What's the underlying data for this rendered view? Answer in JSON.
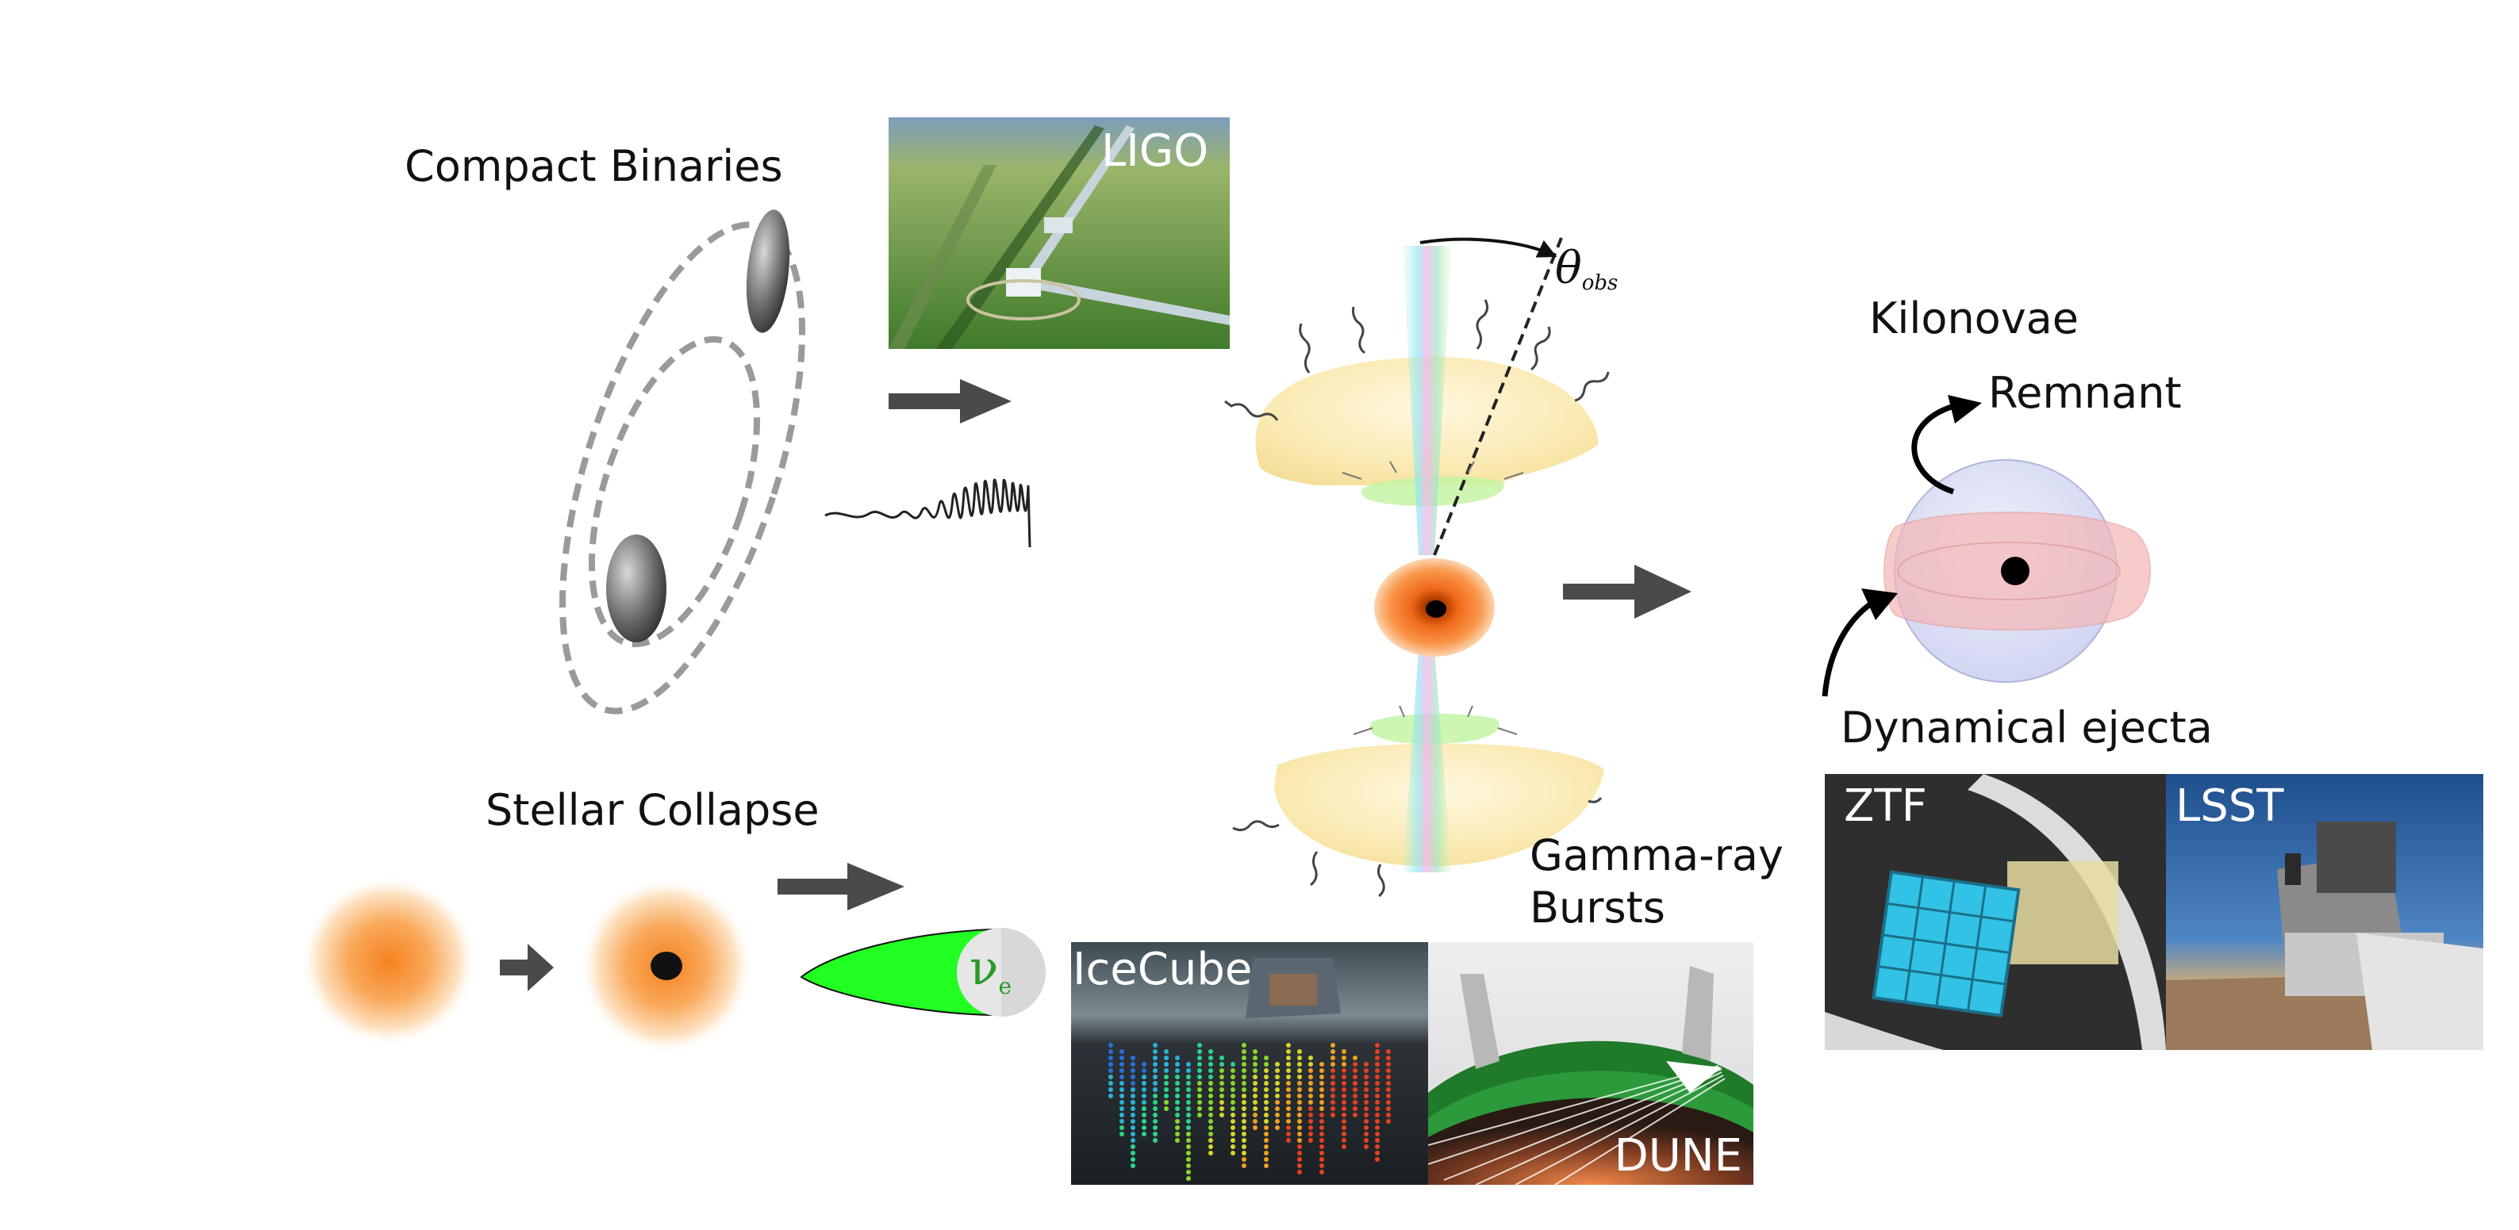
{
  "sections": {
    "compact_binaries": "Compact Binaries",
    "stellar_collapse": "Stellar Collapse",
    "kilonovae": "Kilonovae",
    "remnant": "Remnant",
    "dynamical_ejecta": "Dynamical ejecta",
    "gamma_ray_line1": "Gamma-ray",
    "gamma_ray_line2": "Bursts",
    "theta_symbol": "θ",
    "theta_sub": "obs",
    "neutrino_symbol": "ν",
    "neutrino_sub": "e"
  },
  "observatories": {
    "ligo": "LIGO",
    "icecube": "IceCube",
    "dune": "DUNE",
    "ztf": "ZTF",
    "lsst": "LSST"
  },
  "colors": {
    "arrow": "#4a4a4a",
    "orbit": "#9a9a9a",
    "orange": "#f07a1e",
    "jet_green": "#2bff2b",
    "ejecta_pink": "#f6b6b6",
    "remnant_blue": "#c9cdf0"
  }
}
